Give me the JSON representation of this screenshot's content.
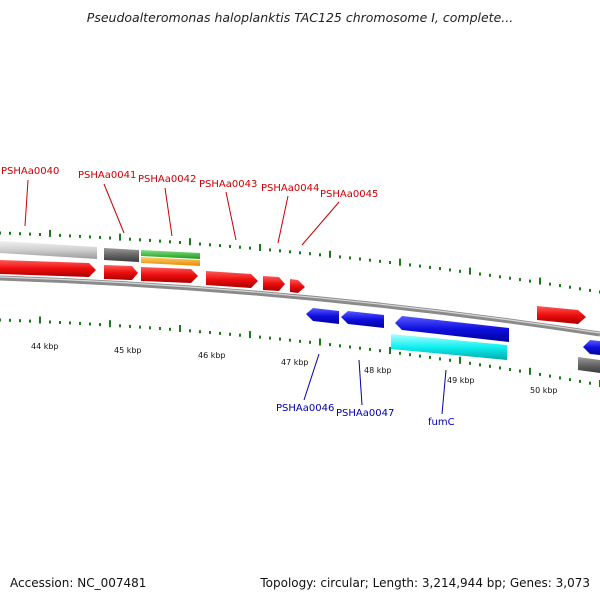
{
  "title": "Pseudoalteromonas haloplanktis TAC125 chromosome I, complete...",
  "footer": {
    "accession": "Accession: NC_007481",
    "summary": "Topology: circular; Length: 3,214,944 bp; Genes: 3,073"
  },
  "colors": {
    "forward_label": "#cc0000",
    "reverse_label": "#0000aa",
    "tick": "#1a7a1a",
    "forward_gene": "#ee1111",
    "reverse_gene": "#1111dd",
    "backbone": "#8a8a8a"
  },
  "kbp_labels": [
    "44 kbp",
    "45 kbp",
    "46 kbp",
    "47 kbp",
    "48 kbp",
    "49 kbp",
    "50 kbp"
  ],
  "forward_gene_labels": [
    "PSHAa0040",
    "PSHAa0041",
    "PSHAa0042",
    "PSHAa0043",
    "PSHAa0044",
    "PSHAa0045"
  ],
  "reverse_gene_labels": [
    "PSHAa0046",
    "PSHAa0047",
    "fumC"
  ]
}
